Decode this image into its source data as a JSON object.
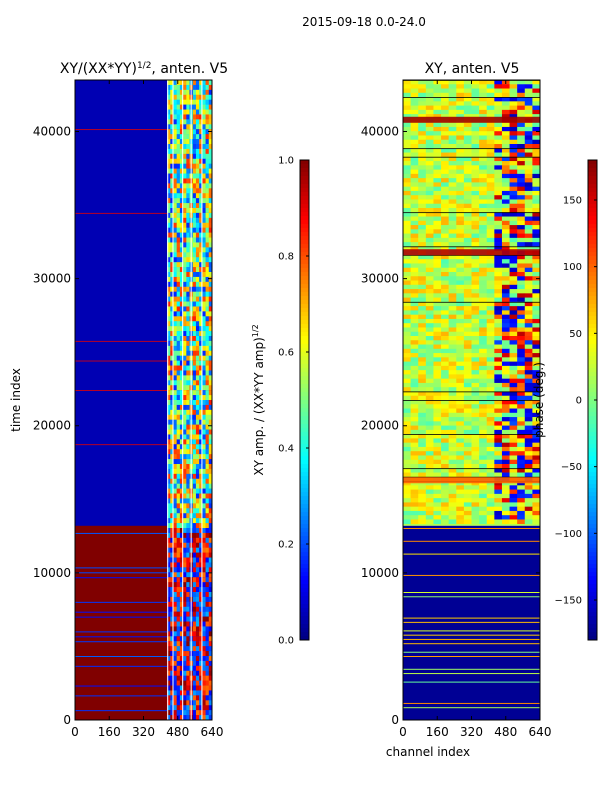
{
  "suptitle": "2015-09-18 0.0-24.0",
  "chart_data": [
    {
      "type": "heatmap",
      "title": "XY/(XX*YY)",
      "title_sup": "1/2",
      "title_suffix": ", anten. V5",
      "xlabel": "",
      "ylabel": "time index",
      "x_ticks": [
        0,
        160,
        320,
        480,
        640
      ],
      "y_ticks": [
        0,
        10000,
        20000,
        30000,
        40000
      ],
      "xlim": [
        0,
        640
      ],
      "ylim": [
        0,
        43500
      ],
      "colorbar": {
        "label": "XY amp. / (XX*YY amp)",
        "label_sup": "1/2",
        "ticks": [
          "0.0",
          "0.2",
          "0.4",
          "0.6",
          "0.8",
          "1.0"
        ],
        "range": [
          0,
          1
        ],
        "colormap": [
          "#00007f",
          "#0000ff",
          "#00bfff",
          "#7fff7f",
          "#ffff00",
          "#ff7f00",
          "#ff0000",
          "#7f0000"
        ]
      },
      "regions": {
        "saturated_time_range": [
          0,
          13200
        ],
        "active_channel_range": [
          430,
          640
        ],
        "note": "mostly low amplitude (~0.05) below 430, high and varied 430-640"
      }
    },
    {
      "type": "heatmap",
      "title": "XY, anten. V5",
      "xlabel": "channel index",
      "ylabel": "",
      "x_ticks": [
        0,
        160,
        320,
        480,
        640
      ],
      "y_ticks": [
        0,
        10000,
        20000,
        30000,
        40000
      ],
      "xlim": [
        0,
        640
      ],
      "ylim": [
        0,
        43500
      ],
      "colorbar": {
        "label": "phase (deg.)",
        "ticks": [
          "−150",
          "−100",
          "−50",
          "0",
          "50",
          "100",
          "150"
        ],
        "tick_values": [
          -150,
          -100,
          -50,
          0,
          50,
          100,
          150
        ],
        "range": [
          -180,
          180
        ],
        "colormap": [
          "#00007f",
          "#0000ff",
          "#00bfff",
          "#7fff7f",
          "#ffff00",
          "#ff7f00",
          "#ff0000",
          "#7f0000"
        ]
      },
      "regions": {
        "low_phase_time_range": [
          0,
          13200
        ],
        "note": "mixed phase ~0 to 50 deg above 13200, near -180 below"
      }
    }
  ]
}
